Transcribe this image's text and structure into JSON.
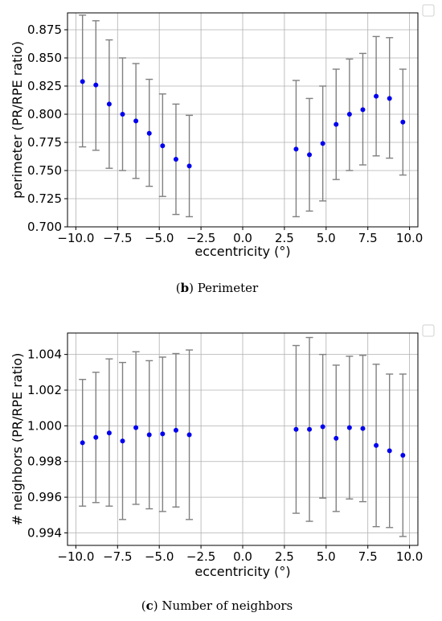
{
  "chart_data": [
    {
      "type": "scatter",
      "error_bars": true,
      "caption_letter": "b",
      "caption_text": "Perimeter",
      "xlabel": "eccentricity (°)",
      "ylabel": "perimeter (PR/RPE ratio)",
      "xlim": [
        -10.5,
        10.5
      ],
      "ylim": [
        0.7,
        0.89
      ],
      "grid": true,
      "marker_color": "#0000ee",
      "errorbar_color": "#808080",
      "xticks": [
        -10.0,
        -7.5,
        -5.0,
        -2.5,
        0.0,
        2.5,
        5.0,
        7.5,
        10.0
      ],
      "xtick_labels": [
        "−10.0",
        "−7.5",
        "−5.0",
        "−2.5",
        "0.0",
        "2.5",
        "5.0",
        "7.5",
        "10.0"
      ],
      "yticks": [
        0.7,
        0.725,
        0.75,
        0.775,
        0.8,
        0.825,
        0.85,
        0.875
      ],
      "ytick_labels": [
        "0.700",
        "0.725",
        "0.750",
        "0.775",
        "0.800",
        "0.825",
        "0.850",
        "0.875"
      ],
      "points": [
        {
          "x": -9.6,
          "y": 0.829,
          "lo": 0.771,
          "hi": 0.888
        },
        {
          "x": -8.8,
          "y": 0.826,
          "lo": 0.768,
          "hi": 0.883
        },
        {
          "x": -8.0,
          "y": 0.809,
          "lo": 0.752,
          "hi": 0.866
        },
        {
          "x": -7.2,
          "y": 0.8,
          "lo": 0.75,
          "hi": 0.85
        },
        {
          "x": -6.4,
          "y": 0.794,
          "lo": 0.743,
          "hi": 0.845
        },
        {
          "x": -5.6,
          "y": 0.783,
          "lo": 0.736,
          "hi": 0.831
        },
        {
          "x": -4.8,
          "y": 0.772,
          "lo": 0.727,
          "hi": 0.818
        },
        {
          "x": -4.0,
          "y": 0.76,
          "lo": 0.711,
          "hi": 0.809
        },
        {
          "x": -3.2,
          "y": 0.754,
          "lo": 0.709,
          "hi": 0.799
        },
        {
          "x": 3.2,
          "y": 0.769,
          "lo": 0.709,
          "hi": 0.83
        },
        {
          "x": 4.0,
          "y": 0.764,
          "lo": 0.714,
          "hi": 0.814
        },
        {
          "x": 4.8,
          "y": 0.774,
          "lo": 0.723,
          "hi": 0.825
        },
        {
          "x": 5.6,
          "y": 0.791,
          "lo": 0.742,
          "hi": 0.84
        },
        {
          "x": 6.4,
          "y": 0.8,
          "lo": 0.75,
          "hi": 0.849
        },
        {
          "x": 7.2,
          "y": 0.804,
          "lo": 0.755,
          "hi": 0.854
        },
        {
          "x": 8.0,
          "y": 0.816,
          "lo": 0.763,
          "hi": 0.869
        },
        {
          "x": 8.8,
          "y": 0.814,
          "lo": 0.761,
          "hi": 0.868
        },
        {
          "x": 9.6,
          "y": 0.793,
          "lo": 0.746,
          "hi": 0.84
        }
      ]
    },
    {
      "type": "scatter",
      "error_bars": true,
      "caption_letter": "c",
      "caption_text": "Number of neighbors",
      "xlabel": "eccentricity (°)",
      "ylabel": "# neighbors (PR/RPE ratio)",
      "xlim": [
        -10.5,
        10.5
      ],
      "ylim": [
        0.9933,
        1.0052
      ],
      "grid": true,
      "marker_color": "#0000ee",
      "errorbar_color": "#808080",
      "xticks": [
        -10.0,
        -7.5,
        -5.0,
        -2.5,
        0.0,
        2.5,
        5.0,
        7.5,
        10.0
      ],
      "xtick_labels": [
        "−10.0",
        "−7.5",
        "−5.0",
        "−2.5",
        "0.0",
        "2.5",
        "5.0",
        "7.5",
        "10.0"
      ],
      "yticks": [
        0.994,
        0.996,
        0.998,
        1.0,
        1.002,
        1.004
      ],
      "ytick_labels": [
        "0.994",
        "0.996",
        "0.998",
        "1.000",
        "1.002",
        "1.004"
      ],
      "points": [
        {
          "x": -9.6,
          "y": 0.99905,
          "lo": 0.9955,
          "hi": 1.0026
        },
        {
          "x": -8.8,
          "y": 0.99935,
          "lo": 0.9957,
          "hi": 1.003
        },
        {
          "x": -8.0,
          "y": 0.9996,
          "lo": 0.9955,
          "hi": 1.00375
        },
        {
          "x": -7.2,
          "y": 0.99915,
          "lo": 0.99475,
          "hi": 1.00355
        },
        {
          "x": -6.4,
          "y": 0.9999,
          "lo": 0.9956,
          "hi": 1.00415
        },
        {
          "x": -5.6,
          "y": 0.9995,
          "lo": 0.99535,
          "hi": 1.00365
        },
        {
          "x": -4.8,
          "y": 0.99955,
          "lo": 0.9952,
          "hi": 1.00385
        },
        {
          "x": -4.0,
          "y": 0.99975,
          "lo": 0.99545,
          "hi": 1.00405
        },
        {
          "x": -3.2,
          "y": 0.9995,
          "lo": 0.99475,
          "hi": 1.00425
        },
        {
          "x": 3.2,
          "y": 0.9998,
          "lo": 0.9951,
          "hi": 1.0045
        },
        {
          "x": 4.0,
          "y": 0.9998,
          "lo": 0.99465,
          "hi": 1.00495
        },
        {
          "x": 4.8,
          "y": 0.99995,
          "lo": 0.99595,
          "hi": 1.004
        },
        {
          "x": 5.6,
          "y": 0.9993,
          "lo": 0.9952,
          "hi": 1.0034
        },
        {
          "x": 6.4,
          "y": 0.9999,
          "lo": 0.9959,
          "hi": 1.0039
        },
        {
          "x": 7.2,
          "y": 0.99985,
          "lo": 0.99575,
          "hi": 1.00395
        },
        {
          "x": 8.0,
          "y": 0.9989,
          "lo": 0.99435,
          "hi": 1.00345
        },
        {
          "x": 8.8,
          "y": 0.9986,
          "lo": 0.9943,
          "hi": 1.0029
        },
        {
          "x": 9.6,
          "y": 0.99835,
          "lo": 0.9938,
          "hi": 1.0029
        }
      ]
    }
  ]
}
